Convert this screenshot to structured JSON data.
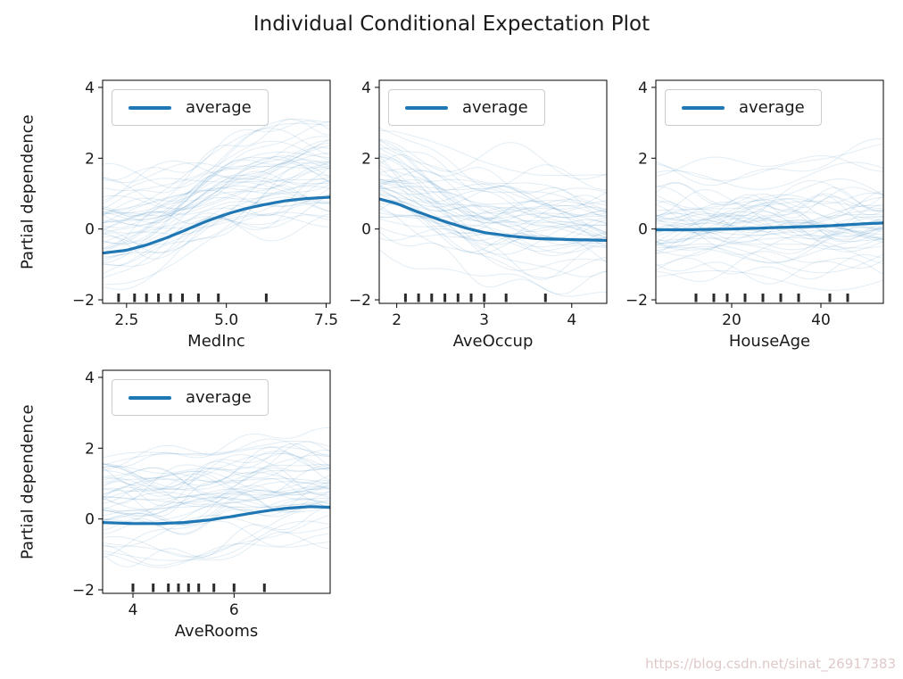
{
  "title": "Individual Conditional Expectation Plot",
  "ylabel": "Partial dependence",
  "watermark": "https://blog.csdn.net/sinat_26917383",
  "colors": {
    "average_line": "#1f77b4",
    "ice_line": "#1f77b4",
    "decile_mark": "#2b2b2b",
    "axis": "#000000"
  },
  "chart_data": [
    {
      "type": "line",
      "xlabel": "MedInc",
      "ylabel": "Partial dependence",
      "xlim": [
        1.9,
        7.6
      ],
      "ylim": [
        -2.1,
        4.2
      ],
      "xticks": [
        {
          "v": 2.5,
          "label": "2.5"
        },
        {
          "v": 5.0,
          "label": "5.0"
        },
        {
          "v": 7.5,
          "label": "7.5"
        }
      ],
      "yticks": [
        {
          "v": -2,
          "label": "−2"
        },
        {
          "v": 0,
          "label": "0"
        },
        {
          "v": 2,
          "label": "2"
        },
        {
          "v": 4,
          "label": "4"
        }
      ],
      "legend": [
        "average"
      ],
      "average_series": {
        "name": "average",
        "x": [
          1.9,
          2.5,
          3.0,
          3.5,
          4.0,
          4.5,
          5.0,
          5.5,
          6.0,
          6.5,
          7.0,
          7.6
        ],
        "y": [
          -0.68,
          -0.6,
          -0.45,
          -0.25,
          -0.02,
          0.22,
          0.42,
          0.58,
          0.7,
          0.8,
          0.86,
          0.9
        ]
      },
      "ice_lines": {
        "count": 48,
        "offset_range": [
          -1.1,
          2.3
        ],
        "opacity": 0.13
      },
      "deciles": [
        2.3,
        2.7,
        3.0,
        3.3,
        3.6,
        3.9,
        4.3,
        4.8,
        6.0
      ]
    },
    {
      "type": "line",
      "xlabel": "AveOccup",
      "ylabel": "Partial dependence",
      "xlim": [
        1.8,
        4.4
      ],
      "ylim": [
        -2.1,
        4.2
      ],
      "xticks": [
        {
          "v": 2,
          "label": "2"
        },
        {
          "v": 3,
          "label": "3"
        },
        {
          "v": 4,
          "label": "4"
        }
      ],
      "yticks": [
        {
          "v": -2,
          "label": "−2"
        },
        {
          "v": 0,
          "label": "0"
        },
        {
          "v": 2,
          "label": "2"
        },
        {
          "v": 4,
          "label": "4"
        }
      ],
      "legend": [
        "average"
      ],
      "average_series": {
        "name": "average",
        "x": [
          1.8,
          2.0,
          2.2,
          2.5,
          2.8,
          3.0,
          3.3,
          3.6,
          4.0,
          4.4
        ],
        "y": [
          0.85,
          0.72,
          0.52,
          0.25,
          0.02,
          -0.1,
          -0.2,
          -0.27,
          -0.3,
          -0.32
        ]
      },
      "ice_lines": {
        "count": 48,
        "offset_range": [
          -1.5,
          2.2
        ],
        "opacity": 0.13
      },
      "deciles": [
        2.1,
        2.25,
        2.4,
        2.55,
        2.7,
        2.85,
        3.0,
        3.25,
        3.7
      ]
    },
    {
      "type": "line",
      "xlabel": "HouseAge",
      "ylabel": "Partial dependence",
      "xlim": [
        3,
        54
      ],
      "ylim": [
        -2.1,
        4.2
      ],
      "xticks": [
        {
          "v": 20,
          "label": "20"
        },
        {
          "v": 40,
          "label": "40"
        }
      ],
      "yticks": [
        {
          "v": -2,
          "label": "−2"
        },
        {
          "v": 0,
          "label": "0"
        },
        {
          "v": 2,
          "label": "2"
        },
        {
          "v": 4,
          "label": "4"
        }
      ],
      "legend": [
        "average"
      ],
      "average_series": {
        "name": "average",
        "x": [
          3,
          10,
          20,
          30,
          40,
          50,
          54
        ],
        "y": [
          -0.02,
          -0.02,
          0.0,
          0.04,
          0.08,
          0.15,
          0.17
        ]
      },
      "ice_lines": {
        "count": 48,
        "offset_range": [
          -1.6,
          2.5
        ],
        "opacity": 0.13
      },
      "deciles": [
        12,
        16,
        19,
        23,
        27,
        31,
        35,
        42,
        46
      ]
    },
    {
      "type": "line",
      "xlabel": "AveRooms",
      "ylabel": "Partial dependence",
      "xlim": [
        3.4,
        7.9
      ],
      "ylim": [
        -2.1,
        4.2
      ],
      "xticks": [
        {
          "v": 4,
          "label": "4"
        },
        {
          "v": 6,
          "label": "6"
        }
      ],
      "yticks": [
        {
          "v": -2,
          "label": "−2"
        },
        {
          "v": 0,
          "label": "0"
        },
        {
          "v": 2,
          "label": "2"
        },
        {
          "v": 4,
          "label": "4"
        }
      ],
      "legend": [
        "average"
      ],
      "average_series": {
        "name": "average",
        "x": [
          3.4,
          4.0,
          4.5,
          5.0,
          5.5,
          6.0,
          6.5,
          7.0,
          7.5,
          7.9
        ],
        "y": [
          -0.1,
          -0.13,
          -0.13,
          -0.1,
          -0.03,
          0.08,
          0.2,
          0.3,
          0.35,
          0.33
        ]
      },
      "ice_lines": {
        "count": 48,
        "offset_range": [
          -1.3,
          2.6
        ],
        "opacity": 0.13
      },
      "deciles": [
        4.0,
        4.4,
        4.7,
        4.9,
        5.1,
        5.3,
        5.6,
        6.0,
        6.6
      ]
    }
  ]
}
